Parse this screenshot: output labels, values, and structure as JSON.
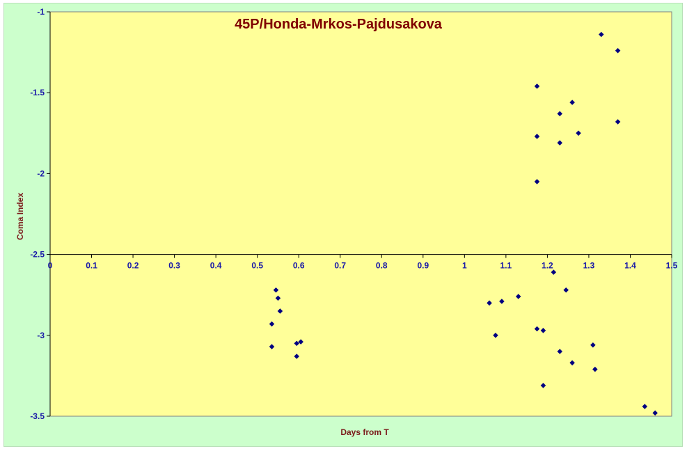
{
  "chart_data": {
    "type": "scatter",
    "title": "45P/Honda-Mrkos-Pajdusakova",
    "xlabel": "Days from T",
    "ylabel": "Coma Index",
    "xlim": [
      0,
      1.5
    ],
    "ylim": [
      -3.5,
      -1
    ],
    "x_ticks": [
      "0",
      "0.1",
      "0.2",
      "0.3",
      "0.4",
      "0.5",
      "0.6",
      "0.7",
      "0.8",
      "0.9",
      "1",
      "1.1",
      "1.2",
      "1.3",
      "1.4",
      "1.5"
    ],
    "y_ticks": [
      "-1",
      "-1.5",
      "-2",
      "-2.5",
      "-3",
      "-3.5"
    ],
    "x_axis_crosses_at": -2.5,
    "grid": false,
    "colors": {
      "plot_background": "#ffff99",
      "chart_background": "#ccffcc",
      "marker": "#000080",
      "title": "#800000",
      "tick_labels": "#1a1aa8"
    },
    "series": [
      {
        "points": [
          [
            0.535,
            -2.93
          ],
          [
            0.535,
            -3.07
          ],
          [
            0.545,
            -2.72
          ],
          [
            0.55,
            -2.77
          ],
          [
            0.555,
            -2.85
          ],
          [
            0.595,
            -3.05
          ],
          [
            0.595,
            -3.13
          ],
          [
            0.605,
            -3.04
          ],
          [
            1.06,
            -2.8
          ],
          [
            1.075,
            -3.0
          ],
          [
            1.09,
            -2.79
          ],
          [
            1.13,
            -2.76
          ],
          [
            1.175,
            -1.46
          ],
          [
            1.175,
            -1.77
          ],
          [
            1.175,
            -2.05
          ],
          [
            1.175,
            -2.96
          ],
          [
            1.19,
            -2.97
          ],
          [
            1.19,
            -3.31
          ],
          [
            1.215,
            -2.61
          ],
          [
            1.23,
            -1.63
          ],
          [
            1.23,
            -1.81
          ],
          [
            1.23,
            -3.1
          ],
          [
            1.245,
            -2.72
          ],
          [
            1.26,
            -1.56
          ],
          [
            1.26,
            -3.17
          ],
          [
            1.275,
            -1.75
          ],
          [
            1.31,
            -3.06
          ],
          [
            1.315,
            -3.21
          ],
          [
            1.33,
            -1.14
          ],
          [
            1.37,
            -1.24
          ],
          [
            1.37,
            -1.68
          ],
          [
            1.435,
            -3.44
          ],
          [
            1.46,
            -3.48
          ]
        ]
      }
    ]
  }
}
